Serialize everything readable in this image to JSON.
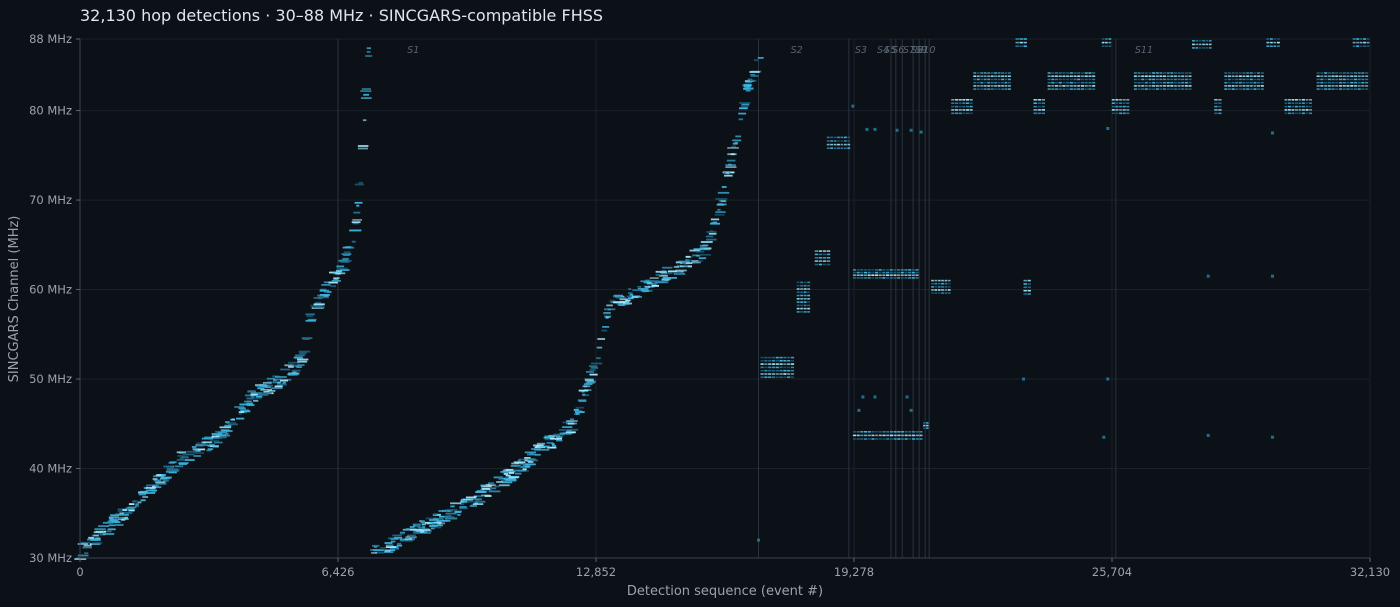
{
  "header": {
    "title": "32,130 hop detections  ·  30–88 MHz  ·  SINCGARS-compatible FHSS"
  },
  "colors": {
    "background": "#0c1017",
    "grid": "#1a212b",
    "divider": "#2a3340",
    "hop_dim": "#1f6f8f",
    "hop": "#3cb5e0",
    "hop_bright": "#a8ecff"
  },
  "chart_data": {
    "type": "scatter",
    "title": "32,130 hop detections  ·  30–88 MHz  ·  SINCGARS-compatible FHSS",
    "xlabel": "Detection sequence  (event #)",
    "ylabel": "SINCGARS Channel (MHz)",
    "xlim": [
      0,
      32130
    ],
    "ylim": [
      30,
      88
    ],
    "xticks": [
      0,
      6426,
      12852,
      19278,
      25704,
      32130
    ],
    "xtick_labels": [
      "0",
      "6,426",
      "12,852",
      "19,278",
      "25,704",
      "32,130"
    ],
    "yticks": [
      30,
      40,
      50,
      60,
      70,
      80,
      88
    ],
    "ytick_labels": [
      "30 MHz",
      "40 MHz",
      "50 MHz",
      "60 MHz",
      "70 MHz",
      "80 MHz",
      "88 MHz"
    ],
    "grid": true,
    "segments": [
      {
        "label": "S1",
        "start": 6426,
        "label_x": 8300
      },
      {
        "label": "S2",
        "start": 16900,
        "label_x": 17850
      },
      {
        "label": "S3",
        "start": 19150,
        "label_x": 19450
      },
      {
        "label": "S4",
        "start": 20200,
        "label_x": 20000
      },
      {
        "label": "S5",
        "start": 20320,
        "label_x": 20180
      },
      {
        "label": "S6",
        "start": 20480,
        "label_x": 20380
      },
      {
        "label": "S7",
        "start": 20750,
        "label_x": 20650
      },
      {
        "label": "S8",
        "start": 20900,
        "label_x": 20850
      },
      {
        "label": "S9",
        "start": 21050,
        "label_x": 20950
      },
      {
        "label": "S10",
        "start": 21150,
        "label_x": 21080
      },
      {
        "label": "S11",
        "start": 25800,
        "label_x": 26500
      }
    ],
    "visible_segment_labels": [
      "S1",
      "S2",
      "S3",
      "S4",
      "S5",
      "S6",
      "S7",
      "S8",
      "S9",
      "S10",
      "S11"
    ],
    "ramps": [
      {
        "x": [
          0,
          1600,
          2500,
          3500,
          4300,
          5000,
          5500,
          5750,
          6200,
          6600,
          6850,
          7000,
          7200
        ],
        "y": [
          30.5,
          37,
          41,
          43.5,
          48,
          50,
          52,
          57,
          60.5,
          63,
          66,
          73,
          87
        ]
      },
      {
        "x": [
          7300,
          8800,
          10000,
          11200,
          12300,
          12900,
          13200,
          14300,
          15000,
          15600,
          16000,
          16600,
          17000
        ],
        "y": [
          30.5,
          34,
          37,
          41,
          45,
          52.5,
          58,
          61,
          62.5,
          64.5,
          70,
          82,
          87
        ]
      }
    ],
    "clusters": [
      {
        "x0": 16950,
        "x1": 17800,
        "y0": 50.2,
        "y1": 52.4
      },
      {
        "x0": 17850,
        "x1": 18200,
        "y0": 57.5,
        "y1": 60.8
      },
      {
        "x0": 18300,
        "x1": 18700,
        "y0": 62.8,
        "y1": 64.3
      },
      {
        "x0": 18600,
        "x1": 19200,
        "y0": 75.8,
        "y1": 77
      },
      {
        "x0": 19250,
        "x1": 21000,
        "y0": 43.3,
        "y1": 44.1
      },
      {
        "x0": 19250,
        "x1": 20900,
        "y0": 61.3,
        "y1": 62.2
      },
      {
        "x0": 21000,
        "x1": 21150,
        "y0": 44.5,
        "y1": 45.1
      },
      {
        "x0": 21200,
        "x1": 21700,
        "y0": 59.6,
        "y1": 61
      },
      {
        "x0": 21700,
        "x1": 22250,
        "y0": 79.7,
        "y1": 81.2
      },
      {
        "x0": 22250,
        "x1": 23200,
        "y0": 82.4,
        "y1": 84.2
      },
      {
        "x0": 23300,
        "x1": 23600,
        "y0": 87.2,
        "y1": 88
      },
      {
        "x0": 23500,
        "x1": 23700,
        "y0": 59.5,
        "y1": 61
      },
      {
        "x0": 23750,
        "x1": 24050,
        "y0": 79.7,
        "y1": 81.2
      },
      {
        "x0": 24100,
        "x1": 25300,
        "y0": 82.4,
        "y1": 84.2
      },
      {
        "x0": 25450,
        "x1": 25700,
        "y0": 87.2,
        "y1": 88
      },
      {
        "x0": 25700,
        "x1": 26150,
        "y0": 79.7,
        "y1": 81.2
      },
      {
        "x0": 26250,
        "x1": 27700,
        "y0": 82.4,
        "y1": 84.2
      },
      {
        "x0": 27700,
        "x1": 28200,
        "y0": 87,
        "y1": 87.8
      },
      {
        "x0": 28250,
        "x1": 28450,
        "y0": 79.7,
        "y1": 81.2
      },
      {
        "x0": 28500,
        "x1": 29500,
        "y0": 82.4,
        "y1": 84.2
      },
      {
        "x0": 29550,
        "x1": 29900,
        "y0": 87.2,
        "y1": 88
      },
      {
        "x0": 30000,
        "x1": 30700,
        "y0": 79.7,
        "y1": 81.2
      },
      {
        "x0": 30800,
        "x1": 32100,
        "y0": 82.4,
        "y1": 84.2
      },
      {
        "x0": 31700,
        "x1": 32130,
        "y0": 87.2,
        "y1": 88
      }
    ],
    "sparse_points": [
      {
        "x": 19250,
        "y": 80.5
      },
      {
        "x": 19600,
        "y": 77.9
      },
      {
        "x": 19800,
        "y": 77.9
      },
      {
        "x": 20350,
        "y": 77.8
      },
      {
        "x": 20700,
        "y": 77.8
      },
      {
        "x": 20950,
        "y": 77.6
      },
      {
        "x": 19500,
        "y": 48
      },
      {
        "x": 19800,
        "y": 48
      },
      {
        "x": 20600,
        "y": 48
      },
      {
        "x": 19400,
        "y": 46.5
      },
      {
        "x": 20700,
        "y": 46.5
      },
      {
        "x": 25500,
        "y": 43.5
      },
      {
        "x": 28100,
        "y": 43.7
      },
      {
        "x": 29700,
        "y": 43.5
      },
      {
        "x": 28100,
        "y": 61.5
      },
      {
        "x": 29700,
        "y": 61.5
      },
      {
        "x": 25600,
        "y": 78
      },
      {
        "x": 29700,
        "y": 77.5
      },
      {
        "x": 16900,
        "y": 32
      },
      {
        "x": 23500,
        "y": 50
      },
      {
        "x": 25600,
        "y": 50
      }
    ]
  }
}
